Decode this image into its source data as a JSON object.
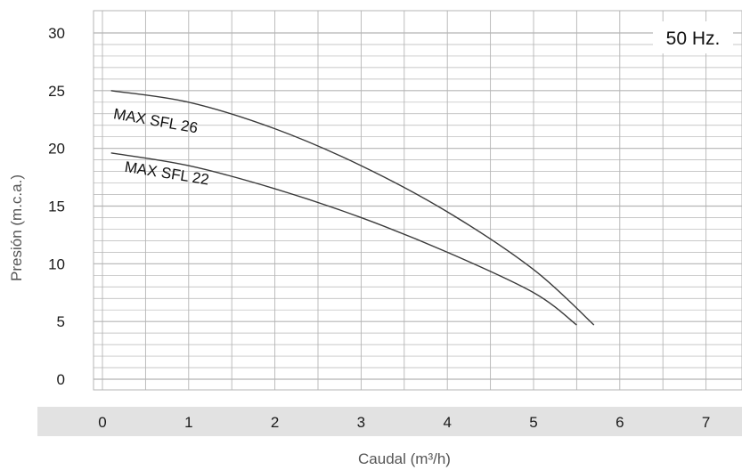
{
  "chart_data": {
    "type": "line",
    "title": "",
    "xlabel": "Caudal (m³/h)",
    "ylabel": "Presión (m.c.a.)",
    "xlim": [
      0,
      7.5
    ],
    "ylim": [
      0,
      30
    ],
    "x_ticks": [
      "0",
      "1",
      "2",
      "3",
      "4",
      "5",
      "6",
      "7"
    ],
    "y_ticks": [
      "0",
      "5",
      "10",
      "15",
      "20",
      "25",
      "30"
    ],
    "grid": true,
    "annotation": "50 Hz.",
    "series": [
      {
        "name": "MAX SFL 26",
        "x": [
          0.1,
          1,
          2,
          3,
          4,
          5,
          5.7
        ],
        "y": [
          25.0,
          24.0,
          21.7,
          18.5,
          14.5,
          9.5,
          4.7
        ]
      },
      {
        "name": "MAX SFL 22",
        "x": [
          0.1,
          1,
          2,
          3,
          4,
          5,
          5.5
        ],
        "y": [
          19.6,
          18.5,
          16.5,
          14.0,
          11.0,
          7.5,
          4.7
        ]
      }
    ],
    "colors": {
      "curve": "#3a3a3a",
      "grid": "#b5b5b5",
      "band": "#e2e2e2"
    }
  }
}
